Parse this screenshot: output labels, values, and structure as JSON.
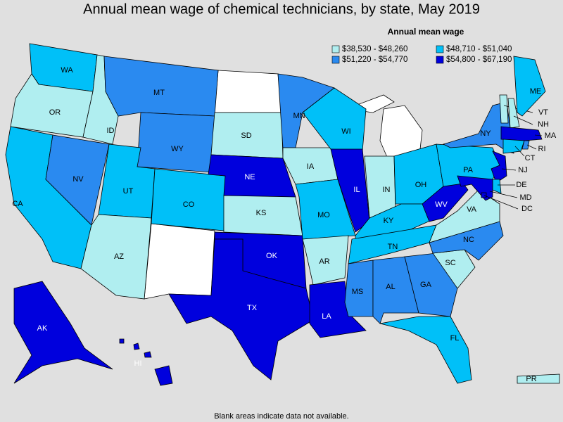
{
  "title": "Annual mean wage of chemical technicians, by state, May 2019",
  "legend": {
    "title": "Annual mean wage",
    "bins": [
      {
        "label": "$38,530 - $48,260",
        "color": "#b0eef0"
      },
      {
        "label": "$48,710 - $51,040",
        "color": "#00c0f8"
      },
      {
        "label": "$51,220 - $54,770",
        "color": "#2a8af0"
      },
      {
        "label": "$54,800 - $67,190",
        "color": "#0000dd"
      }
    ]
  },
  "states": [
    {
      "label": "WA",
      "range": "$48,710 - $51,040"
    },
    {
      "label": "OR",
      "range": "$38,530 - $48,260"
    },
    {
      "label": "CA",
      "range": "$48,710 - $51,040"
    },
    {
      "label": "NV",
      "range": "$51,220 - $54,770"
    },
    {
      "label": "ID",
      "range": "$38,530 - $48,260"
    },
    {
      "label": "MT",
      "range": "$51,220 - $54,770"
    },
    {
      "label": "WY",
      "range": "$51,220 - $54,770"
    },
    {
      "label": "UT",
      "range": "$48,710 - $51,040"
    },
    {
      "label": "AZ",
      "range": "$38,530 - $48,260"
    },
    {
      "label": "CO",
      "range": "$48,710 - $51,040"
    },
    {
      "label": "SD",
      "range": "$38,530 - $48,260"
    },
    {
      "label": "NE",
      "range": "$54,800 - $67,190"
    },
    {
      "label": "KS",
      "range": "$38,530 - $48,260"
    },
    {
      "label": "OK",
      "range": "$54,800 - $67,190"
    },
    {
      "label": "TX",
      "range": "$54,800 - $67,190"
    },
    {
      "label": "MN",
      "range": "$51,220 - $54,770"
    },
    {
      "label": "IA",
      "range": "$38,530 - $48,260"
    },
    {
      "label": "MO",
      "range": "$48,710 - $51,040"
    },
    {
      "label": "AR",
      "range": "$38,530 - $48,260"
    },
    {
      "label": "LA",
      "range": "$54,800 - $67,190"
    },
    {
      "label": "WI",
      "range": "$48,710 - $51,040"
    },
    {
      "label": "IL",
      "range": "$54,800 - $67,190"
    },
    {
      "label": "IN",
      "range": "$38,530 - $48,260"
    },
    {
      "label": "OH",
      "range": "$48,710 - $51,040"
    },
    {
      "label": "KY",
      "range": "$48,710 - $51,040"
    },
    {
      "label": "TN",
      "range": "$48,710 - $51,040"
    },
    {
      "label": "MS",
      "range": "$51,220 - $54,770"
    },
    {
      "label": "AL",
      "range": "$51,220 - $54,770"
    },
    {
      "label": "GA",
      "range": "$51,220 - $54,770"
    },
    {
      "label": "FL",
      "range": "$48,710 - $51,040"
    },
    {
      "label": "SC",
      "range": "$38,530 - $48,260"
    },
    {
      "label": "NC",
      "range": "$51,220 - $54,770"
    },
    {
      "label": "VA",
      "range": "$38,530 - $48,260"
    },
    {
      "label": "WV",
      "range": "$54,800 - $67,190"
    },
    {
      "label": "PA",
      "range": "$48,710 - $51,040"
    },
    {
      "label": "NY",
      "range": "$51,220 - $54,770"
    },
    {
      "label": "VT",
      "range": "$38,530 - $48,260"
    },
    {
      "label": "NH",
      "range": "$38,530 - $48,260"
    },
    {
      "label": "ME",
      "range": "$48,710 - $51,040"
    },
    {
      "label": "MA",
      "range": "$54,800 - $67,190"
    },
    {
      "label": "CT",
      "range": "$48,710 - $51,040"
    },
    {
      "label": "RI",
      "range": "$51,220 - $54,770"
    },
    {
      "label": "NJ",
      "range": "$54,800 - $67,190"
    },
    {
      "label": "DE",
      "range": "$48,710 - $51,040"
    },
    {
      "label": "MD",
      "range": "$54,800 - $67,190"
    },
    {
      "label": "DC",
      "range": "$54,800 - $67,190"
    },
    {
      "label": "AK",
      "range": "$54,800 - $67,190"
    },
    {
      "label": "HI",
      "range": "$54,800 - $67,190"
    },
    {
      "label": "PR",
      "range": "$38,530 - $48,260"
    }
  ],
  "note": "Blank areas indicate data not available."
}
